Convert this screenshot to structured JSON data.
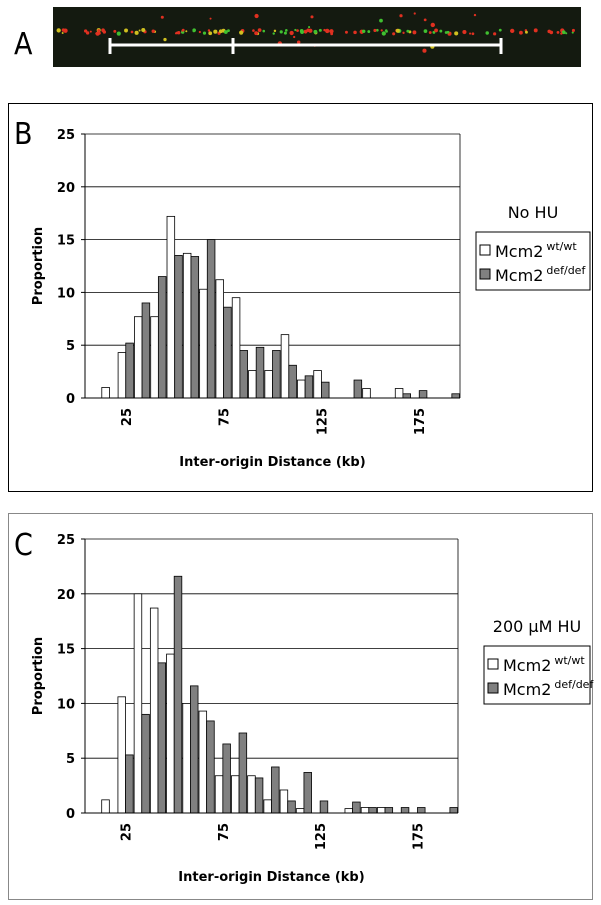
{
  "panel_labels": [
    "A",
    "B",
    "C"
  ],
  "chart_data": [
    {
      "type": "bar",
      "ylabel": "Proportion",
      "xlabel": "Inter-origin Distance (kb)",
      "legend_title": "No HU",
      "categories": [
        null,
        null,
        "25",
        null,
        null,
        null,
        null,
        null,
        "75",
        null,
        null,
        null,
        null,
        null,
        "125",
        null,
        null,
        null,
        null,
        null,
        "175",
        null,
        null
      ],
      "series": [
        {
          "name": "Mcm2",
          "superscript": "wt/wt",
          "color": "#ffffff",
          "values": [
            0,
            1.0,
            4.3,
            7.7,
            7.7,
            17.2,
            13.7,
            10.3,
            11.2,
            9.5,
            2.6,
            2.6,
            6.0,
            1.7,
            2.6,
            0,
            0,
            0.9,
            0,
            0.9,
            0,
            0,
            0
          ]
        },
        {
          "name": "Mcm2",
          "superscript": "def/def",
          "color": "#808080",
          "values": [
            0,
            0,
            5.2,
            9.0,
            11.5,
            13.5,
            13.4,
            15.0,
            8.6,
            4.5,
            4.8,
            4.5,
            3.1,
            2.1,
            1.5,
            0,
            1.7,
            0,
            0,
            0.4,
            0.7,
            0,
            0.4
          ]
        }
      ],
      "ylim": [
        0,
        25
      ],
      "yticks": [
        0,
        5,
        10,
        15,
        20,
        25
      ],
      "grid": true
    },
    {
      "type": "bar",
      "ylabel": "Proportion",
      "xlabel": "Inter-origin Distance (kb)",
      "legend_title": "200 µM HU",
      "categories": [
        null,
        null,
        "25",
        null,
        null,
        null,
        null,
        null,
        "75",
        null,
        null,
        null,
        null,
        null,
        "125",
        null,
        null,
        null,
        null,
        null,
        "175",
        null,
        null
      ],
      "series": [
        {
          "name": "Mcm2",
          "superscript": "wt/wt",
          "color": "#ffffff",
          "values": [
            0,
            1.2,
            10.6,
            20.0,
            18.7,
            14.5,
            10.0,
            9.3,
            3.4,
            3.4,
            3.4,
            1.2,
            2.1,
            0.4,
            0,
            0,
            0.4,
            0.5,
            0.5,
            0,
            0,
            0,
            0
          ]
        },
        {
          "name": "Mcm2",
          "superscript": "def/def",
          "color": "#808080",
          "values": [
            0,
            0,
            5.3,
            9.0,
            13.7,
            21.6,
            11.6,
            8.4,
            6.3,
            7.3,
            3.2,
            4.2,
            1.1,
            3.7,
            1.1,
            0,
            1.0,
            0.5,
            0.5,
            0.5,
            0.5,
            0,
            0.5
          ]
        }
      ],
      "ylim": [
        0,
        25
      ],
      "yticks": [
        0,
        5,
        10,
        15,
        20,
        25
      ],
      "grid": true
    }
  ]
}
